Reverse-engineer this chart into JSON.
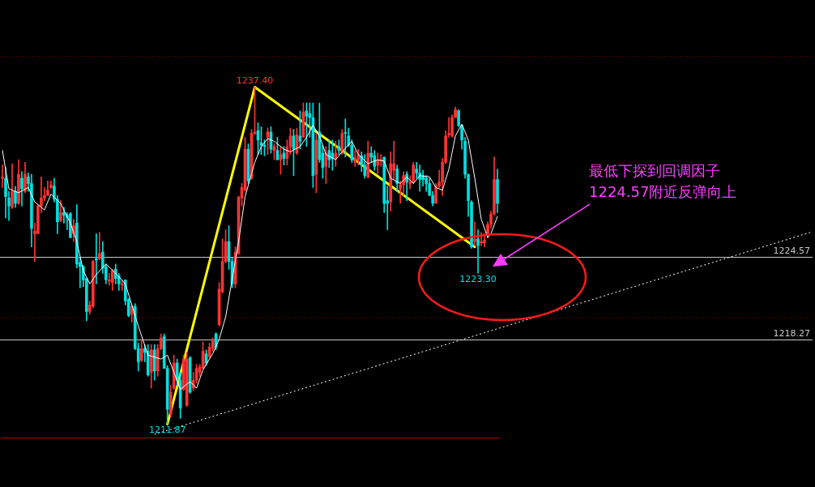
{
  "chart_data": {
    "type": "candlestick",
    "categories": [
      null,
      null,
      null,
      null,
      null,
      null,
      null,
      null,
      null,
      null,
      null,
      null,
      null,
      null,
      null,
      null,
      null,
      null,
      null,
      null,
      null,
      null,
      null,
      null,
      null,
      null,
      null,
      null,
      null,
      null,
      null,
      null,
      null,
      null,
      null,
      null,
      null,
      null,
      null,
      null,
      null,
      null,
      null,
      null,
      null,
      null,
      null,
      null,
      null,
      null,
      null,
      null,
      null,
      null,
      null,
      null,
      null,
      null,
      null,
      null,
      null,
      null,
      null,
      null,
      null,
      null,
      null,
      null,
      null,
      null,
      null,
      null,
      null,
      null,
      null,
      null,
      null,
      null,
      null,
      null,
      null,
      null,
      null,
      null,
      null,
      null,
      null,
      null,
      null,
      null,
      null,
      null,
      null,
      null,
      null,
      null,
      null,
      null,
      null,
      null,
      null,
      null,
      null,
      null,
      null,
      null,
      null,
      null,
      null,
      null,
      null,
      null,
      null,
      null,
      null,
      null,
      null,
      null,
      null,
      null,
      null,
      null,
      null,
      null,
      null,
      null,
      null,
      null,
      null,
      null,
      null,
      null,
      null,
      null,
      null,
      null,
      null,
      null,
      null,
      null,
      null,
      null,
      null,
      null,
      null,
      null,
      null,
      null,
      null,
      null,
      null,
      null,
      null,
      null
    ],
    "ohlc": [
      [
        1230.5,
        1231.5,
        1229.8,
        1230.6
      ],
      [
        1230.5,
        1231.3,
        1227.5,
        1229.1
      ],
      [
        1229.0,
        1229.5,
        1227.3,
        1228.4
      ],
      [
        1228.3,
        1231.6,
        1228.2,
        1229.5
      ],
      [
        1229.5,
        1229.9,
        1228.3,
        1228.6
      ],
      [
        1228.6,
        1231.9,
        1228.5,
        1230.8
      ],
      [
        1230.5,
        1231.0,
        1228.4,
        1229.7
      ],
      [
        1229.5,
        1231.7,
        1229.4,
        1230.8
      ],
      [
        1230.6,
        1230.9,
        1229.5,
        1230.1
      ],
      [
        1230.1,
        1230.8,
        1225.3,
        1226.7
      ],
      [
        1226.3,
        1227.1,
        1224.2,
        1226.5
      ],
      [
        1226.3,
        1228.5,
        1226.3,
        1228.4
      ],
      [
        1228.4,
        1230.6,
        1227.9,
        1229.0
      ],
      [
        1229.0,
        1229.8,
        1228.8,
        1229.2
      ],
      [
        1229.2,
        1230.3,
        1229.2,
        1229.6
      ],
      [
        1229.8,
        1230.3,
        1229.7,
        1230.0
      ],
      [
        1229.9,
        1230.5,
        1228.7,
        1228.9
      ],
      [
        1228.9,
        1229.2,
        1226.3,
        1227.2
      ],
      [
        1227.3,
        1228.8,
        1227.2,
        1227.9
      ],
      [
        1227.9,
        1228.3,
        1227.1,
        1227.7
      ],
      [
        1227.7,
        1227.9,
        1226.6,
        1227.5
      ],
      [
        1227.8,
        1227.9,
        1226.0,
        1226.0
      ],
      [
        1226.3,
        1227.4,
        1225.7,
        1226.9
      ],
      [
        1227.1,
        1228.5,
        1223.7,
        1224.0
      ],
      [
        1224.1,
        1224.5,
        1222.2,
        1223.8
      ],
      [
        1223.8,
        1223.9,
        1222.3,
        1222.8
      ],
      [
        1222.9,
        1222.9,
        1219.7,
        1220.4
      ],
      [
        1220.4,
        1221.2,
        1220.2,
        1220.9
      ],
      [
        1220.8,
        1224.3,
        1220.7,
        1224.2
      ],
      [
        1224.4,
        1226.3,
        1222.5,
        1224.3
      ],
      [
        1224.4,
        1226.4,
        1224.3,
        1224.8
      ],
      [
        1224.9,
        1225.7,
        1223.3,
        1223.7
      ],
      [
        1223.8,
        1224.0,
        1222.5,
        1222.8
      ],
      [
        1222.7,
        1223.3,
        1222.4,
        1222.8
      ],
      [
        1222.6,
        1223.6,
        1222.0,
        1223.5
      ],
      [
        1223.6,
        1224.0,
        1222.5,
        1222.9
      ],
      [
        1223.1,
        1223.3,
        1222.0,
        1222.5
      ],
      [
        1222.4,
        1222.8,
        1222.0,
        1222.5
      ],
      [
        1222.8,
        1222.8,
        1220.9,
        1221.2
      ],
      [
        1221.3,
        1221.4,
        1220.0,
        1220.1
      ],
      [
        1220.2,
        1220.9,
        1219.6,
        1220.8
      ],
      [
        1220.8,
        1221.0,
        1217.5,
        1217.6
      ],
      [
        1217.6,
        1218.0,
        1215.9,
        1216.6
      ],
      [
        1216.7,
        1218.3,
        1216.6,
        1217.6
      ],
      [
        1217.6,
        1217.9,
        1216.6,
        1217.3
      ],
      [
        1217.4,
        1217.9,
        1215.5,
        1215.6
      ],
      [
        1215.8,
        1217.9,
        1214.6,
        1217.5
      ],
      [
        1217.5,
        1217.9,
        1215.2,
        1215.9
      ],
      [
        1215.9,
        1217.9,
        1215.5,
        1217.6
      ],
      [
        1217.6,
        1218.7,
        1217.5,
        1218.4
      ],
      [
        1218.5,
        1218.7,
        1216.1,
        1216.1
      ],
      [
        1216.1,
        1216.3,
        1211.87,
        1213.0
      ],
      [
        1212.6,
        1214.8,
        1212.4,
        1214.3
      ],
      [
        1214.6,
        1217.1,
        1214.5,
        1216.5
      ],
      [
        1216.5,
        1216.8,
        1214.8,
        1215.2
      ],
      [
        1215.2,
        1215.8,
        1212.3,
        1213.1
      ],
      [
        1214.5,
        1217.1,
        1214.4,
        1216.8
      ],
      [
        1213.3,
        1217.3,
        1213.2,
        1216.8
      ],
      [
        1216.9,
        1217.0,
        1214.2,
        1214.3
      ],
      [
        1214.6,
        1215.8,
        1214.4,
        1215.2
      ],
      [
        1215.2,
        1216.4,
        1215.0,
        1216.1
      ],
      [
        1215.8,
        1216.4,
        1215.5,
        1216.2
      ],
      [
        1216.1,
        1218.1,
        1216.1,
        1217.4
      ],
      [
        1217.2,
        1217.5,
        1216.3,
        1216.5
      ],
      [
        1217.0,
        1218.0,
        1216.9,
        1217.7
      ],
      [
        1217.6,
        1218.4,
        1217.4,
        1218.3
      ],
      [
        1218.7,
        1218.8,
        1217.5,
        1217.7
      ],
      [
        1219.4,
        1222.6,
        1219.3,
        1222.1
      ],
      [
        1221.9,
        1225.9,
        1221.8,
        1224.2
      ],
      [
        1224.2,
        1226.6,
        1224.1,
        1225.7
      ],
      [
        1225.7,
        1226.9,
        1223.6,
        1224.2
      ],
      [
        1224.2,
        1224.5,
        1222.2,
        1222.5
      ],
      [
        1222.5,
        1225.3,
        1222.2,
        1224.9
      ],
      [
        1224.8,
        1229.1,
        1224.7,
        1229.1
      ],
      [
        1229.0,
        1230.1,
        1228.4,
        1229.8
      ],
      [
        1229.6,
        1233.6,
        1229.5,
        1232.7
      ],
      [
        1232.7,
        1233.1,
        1230.1,
        1230.3
      ],
      [
        1230.5,
        1234.2,
        1230.4,
        1233.9
      ],
      [
        1233.9,
        1237.4,
        1233.8,
        1234.0
      ],
      [
        1234.1,
        1234.7,
        1232.3,
        1233.4
      ],
      [
        1233.2,
        1234.4,
        1232.3,
        1233.0
      ],
      [
        1233.0,
        1233.4,
        1232.2,
        1232.9
      ],
      [
        1233.6,
        1234.3,
        1232.3,
        1234.0
      ],
      [
        1234.0,
        1234.4,
        1232.4,
        1232.7
      ],
      [
        1232.6,
        1233.1,
        1231.9,
        1232.9
      ],
      [
        1232.6,
        1233.6,
        1231.9,
        1231.9
      ],
      [
        1231.9,
        1232.9,
        1230.8,
        1232.3
      ],
      [
        1232.4,
        1232.9,
        1231.5,
        1232.0
      ],
      [
        1232.0,
        1233.4,
        1231.5,
        1232.9
      ],
      [
        1232.9,
        1234.3,
        1232.3,
        1233.7
      ],
      [
        1233.7,
        1234.2,
        1230.7,
        1232.7
      ],
      [
        1232.4,
        1234.3,
        1232.3,
        1233.8
      ],
      [
        1233.7,
        1235.6,
        1232.7,
        1233.3
      ],
      [
        1233.6,
        1236.2,
        1233.6,
        1235.5
      ],
      [
        1235.6,
        1236.2,
        1232.9,
        1235.2
      ],
      [
        1235.4,
        1236.2,
        1233.6,
        1235.1
      ],
      [
        1235.1,
        1236.2,
        1229.8,
        1230.7
      ],
      [
        1230.8,
        1233.9,
        1229.4,
        1233.4
      ],
      [
        1234.0,
        1236.2,
        1231.7,
        1231.9
      ],
      [
        1232.4,
        1233.0,
        1230.5,
        1231.3
      ],
      [
        1231.4,
        1232.9,
        1230.1,
        1232.4
      ],
      [
        1232.6,
        1233.4,
        1231.3,
        1231.9
      ],
      [
        1232.4,
        1233.4,
        1231.1,
        1232.0
      ],
      [
        1232.0,
        1233.3,
        1231.4,
        1232.4
      ],
      [
        1232.9,
        1233.4,
        1232.3,
        1232.6
      ],
      [
        1232.4,
        1234.2,
        1232.3,
        1233.9
      ],
      [
        1233.9,
        1235.0,
        1232.1,
        1233.9
      ],
      [
        1233.7,
        1234.3,
        1232.9,
        1233.0
      ],
      [
        1233.0,
        1233.4,
        1231.7,
        1231.9
      ],
      [
        1231.7,
        1232.6,
        1231.4,
        1232.0
      ],
      [
        1231.9,
        1232.7,
        1231.5,
        1232.3
      ],
      [
        1232.2,
        1232.5,
        1231.0,
        1231.5
      ],
      [
        1231.5,
        1232.3,
        1230.5,
        1230.7
      ],
      [
        1230.6,
        1233.3,
        1230.5,
        1232.4
      ],
      [
        1232.4,
        1232.9,
        1231.7,
        1232.1
      ],
      [
        1232.2,
        1232.6,
        1231.1,
        1231.4
      ],
      [
        1231.5,
        1232.4,
        1230.8,
        1231.9
      ],
      [
        1231.8,
        1232.3,
        1231.4,
        1231.9
      ],
      [
        1232.1,
        1232.1,
        1227.9,
        1228.6
      ],
      [
        1228.8,
        1229.9,
        1226.6,
        1228.6
      ],
      [
        1228.7,
        1232.5,
        1228.0,
        1231.6
      ],
      [
        1231.1,
        1233.3,
        1230.4,
        1231.6
      ],
      [
        1231.2,
        1231.5,
        1229.5,
        1230.1
      ],
      [
        1229.7,
        1230.3,
        1228.6,
        1230.0
      ],
      [
        1230.0,
        1231.0,
        1229.2,
        1230.7
      ],
      [
        1230.8,
        1231.0,
        1228.8,
        1230.2
      ],
      [
        1230.1,
        1230.7,
        1229.7,
        1230.2
      ],
      [
        1230.2,
        1231.7,
        1230.1,
        1231.5
      ],
      [
        1231.2,
        1231.7,
        1230.5,
        1230.9
      ],
      [
        1230.9,
        1231.5,
        1229.5,
        1230.4
      ],
      [
        1230.7,
        1231.1,
        1229.9,
        1230.4
      ],
      [
        1230.5,
        1230.7,
        1229.5,
        1230.1
      ],
      [
        1230.1,
        1230.5,
        1229.2,
        1229.2
      ],
      [
        1229.2,
        1229.5,
        1228.4,
        1228.6
      ],
      [
        1228.6,
        1230.1,
        1228.6,
        1229.9
      ],
      [
        1229.9,
        1231.1,
        1229.8,
        1230.2
      ],
      [
        1230.2,
        1232.0,
        1229.2,
        1231.7
      ],
      [
        1231.7,
        1234.1,
        1231.6,
        1233.7
      ],
      [
        1233.8,
        1235.1,
        1233.6,
        1233.9
      ],
      [
        1233.7,
        1235.3,
        1233.6,
        1235.1
      ],
      [
        1235.1,
        1235.9,
        1235.1,
        1235.7
      ],
      [
        1235.6,
        1235.7,
        1234.4,
        1234.5
      ],
      [
        1234.5,
        1234.5,
        1232.7,
        1233.4
      ],
      [
        1233.3,
        1233.6,
        1230.5,
        1230.8
      ],
      [
        1230.8,
        1230.8,
        1227.6,
        1228.8
      ],
      [
        1228.7,
        1228.8,
        1225.2,
        1225.3
      ],
      [
        1225.7,
        1227.2,
        1225.4,
        1225.9
      ],
      [
        1225.9,
        1226.6,
        1223.3,
        1225.4
      ],
      [
        1225.6,
        1226.4,
        1225.4,
        1225.7
      ],
      [
        1225.6,
        1226.3,
        1225.3,
        1225.8
      ],
      [
        1226.3,
        1227.2,
        1226.0,
        1227.0
      ],
      [
        1227.0,
        1228.0,
        1226.7,
        1227.8
      ],
      [
        1227.8,
        1232.1,
        1227.7,
        1230.4
      ],
      [
        1230.4,
        1231.2,
        1227.9,
        1228.6
      ]
    ],
    "colors": [
      "#ff3232",
      "#00e0e0",
      "#00e0e0",
      "#ff3232",
      "#00e0e0",
      "#ff3232",
      "#00e0e0",
      "#ff3232",
      "#00e0e0",
      "#00e0e0",
      "#ff3232",
      "#ff3232",
      "#ff3232",
      "#ff3232",
      "#ff3232",
      "#ff3232",
      "#00e0e0",
      "#00e0e0",
      "#ff3232",
      "#00e0e0",
      "#00e0e0",
      "#00e0e0",
      "#ff3232",
      "#00e0e0",
      "#00e0e0",
      "#00e0e0",
      "#00e0e0",
      "#ff3232",
      "#ff3232",
      "#00e0e0",
      "#ff3232",
      "#00e0e0",
      "#00e0e0",
      "#ff3232",
      "#ff3232",
      "#00e0e0",
      "#00e0e0",
      "#ff3232",
      "#00e0e0",
      "#00e0e0",
      "#ff3232",
      "#00e0e0",
      "#00e0e0",
      "#ff3232",
      "#00e0e0",
      "#00e0e0",
      "#ff3232",
      "#00e0e0",
      "#ff3232",
      "#ff3232",
      "#00e0e0",
      "#00e0e0",
      "#ff3232",
      "#ff3232",
      "#00e0e0",
      "#00e0e0",
      "#ff3232",
      "#ff3232",
      "#00e0e0",
      "#ff3232",
      "#ff3232",
      "#ff3232",
      "#ff3232",
      "#00e0e0",
      "#ff3232",
      "#ff3232",
      "#00e0e0",
      "#ff3232",
      "#ff3232",
      "#ff3232",
      "#00e0e0",
      "#00e0e0",
      "#ff3232",
      "#ff3232",
      "#ff3232",
      "#ff3232",
      "#00e0e0",
      "#ff3232",
      "#ff3232",
      "#00e0e0",
      "#00e0e0",
      "#00e0e0",
      "#ff3232",
      "#00e0e0",
      "#ff3232",
      "#00e0e0",
      "#ff3232",
      "#00e0e0",
      "#ff3232",
      "#ff3232",
      "#00e0e0",
      "#ff3232",
      "#00e0e0",
      "#ff3232",
      "#00e0e0",
      "#00e0e0",
      "#00e0e0",
      "#ff3232",
      "#00e0e0",
      "#00e0e0",
      "#ff3232",
      "#00e0e0",
      "#00e0e0",
      "#ff3232",
      "#00e0e0",
      "#ff3232",
      "#00e0e0",
      "#00e0e0",
      "#00e0e0",
      "#ff3232",
      "#ff3232",
      "#00e0e0",
      "#00e0e0",
      "#ff3232",
      "#00e0e0",
      "#00e0e0",
      "#ff3232",
      "#ff3232",
      "#00e0e0",
      "#00e0e0",
      "#ff3232",
      "#ff3232",
      "#00e0e0",
      "#ff3232",
      "#ff3232",
      "#00e0e0",
      "#ff3232",
      "#ff3232",
      "#00e0e0",
      "#00e0e0",
      "#00e0e0",
      "#00e0e0",
      "#00e0e0",
      "#00e0e0",
      "#ff3232",
      "#ff3232",
      "#ff3232",
      "#ff3232",
      "#ff3232",
      "#ff3232",
      "#ff3232",
      "#00e0e0",
      "#00e0e0",
      "#00e0e0",
      "#00e0e0",
      "#00e0e0",
      "#ff3232",
      "#00e0e0",
      "#ff3232",
      "#ff3232",
      "#ff3232",
      "#ff3232",
      "#ff3232",
      "#00e0e0"
    ],
    "value_labels": [
      null,
      null,
      null,
      null,
      null,
      null,
      null,
      null,
      null,
      null,
      null,
      null,
      null,
      null,
      null,
      null,
      null,
      null,
      null,
      null,
      null,
      null,
      null,
      null,
      null,
      null,
      null,
      null,
      null,
      null,
      null,
      null,
      null,
      null,
      null,
      null,
      null,
      null,
      null,
      null,
      null,
      null,
      null,
      null,
      null,
      null,
      null,
      null,
      null,
      null,
      null,
      "1211.87",
      null,
      null,
      null,
      null,
      null,
      null,
      null,
      null,
      null,
      null,
      null,
      null,
      null,
      null,
      null,
      null,
      null,
      null,
      null,
      null,
      null,
      null,
      null,
      null,
      null,
      null,
      "1237.40",
      null,
      null,
      null,
      null,
      null,
      null,
      null,
      null,
      null,
      null,
      null,
      null,
      null,
      null,
      null,
      null,
      null,
      null,
      null,
      null,
      null,
      null,
      null,
      null,
      null,
      null,
      null,
      null,
      null,
      null,
      null,
      null,
      null,
      null,
      null,
      null,
      null,
      null,
      null,
      null,
      null,
      null,
      null,
      null,
      null,
      null,
      null,
      null,
      null,
      null,
      null,
      null,
      null,
      null,
      null,
      null,
      null,
      null,
      null,
      null,
      null,
      null,
      null,
      null,
      null,
      null,
      null,
      null,
      "1223.30",
      null,
      null,
      null,
      null,
      null,
      null
    ],
    "series": [
      {
        "type": "line",
        "color": "#ffffff",
        "values": [
          1232.6,
          null,
          1229.7,
          null,
          null,
          1229.4,
          null,
          null,
          1229.8,
          null,
          1228.7,
          null,
          null,
          1228.1,
          null,
          1229.3,
          null,
          null,
          1228.6,
          null,
          null,
          1227.1,
          null,
          1225.7,
          null,
          1223.5,
          null,
          1222.5,
          null,
          1223.2,
          null,
          null,
          1224.0,
          null,
          null,
          1223.3,
          null,
          null,
          1222.5,
          null,
          null,
          null,
          1219.3,
          null,
          null,
          1217.1,
          null,
          null,
          null,
          1216.8,
          null,
          1217.1,
          null,
          1215.8,
          null,
          1214.5,
          null,
          null,
          1215.1,
          null,
          1214.6,
          null,
          1216.0,
          null,
          null,
          1217.2,
          null,
          1218.3,
          null,
          1220.0,
          null,
          null,
          null,
          1225.7,
          null,
          1229.1,
          null,
          null,
          1231.7,
          null,
          1232.9,
          null,
          1233.5,
          null,
          1233.3,
          null,
          null,
          1232.7,
          null,
          1232.5,
          null,
          null,
          1232.9,
          null,
          1233.6,
          null,
          1234.5,
          null,
          1233.7,
          null,
          1232.3,
          null,
          null,
          1231.9,
          null,
          1232.5,
          null,
          null,
          1233.3,
          null,
          1232.3,
          null,
          null,
          1231.6,
          null,
          null,
          1231.9,
          null,
          1231.8,
          null,
          1230.5,
          null,
          null,
          1230.1,
          null,
          1230.6,
          null,
          1230.1,
          null,
          1230.7,
          null,
          null,
          1230.6,
          null,
          1229.8,
          null,
          1229.6,
          null,
          1231.2,
          null,
          1233.7,
          null,
          1234.6,
          null,
          1233.4,
          null,
          1230.5,
          null,
          1227.4,
          null,
          1226.0,
          1226.3,
          null,
          1227.6
        ]
      },
      {
        "type": "line",
        "color": "#ffff00",
        "values": [
          null,
          null,
          null,
          null,
          null,
          null,
          null,
          null,
          null,
          null,
          null,
          null,
          null,
          null,
          null,
          null,
          null,
          null,
          null,
          null,
          null,
          null,
          null,
          null,
          null,
          null,
          null,
          null,
          null,
          null,
          null,
          null,
          null,
          null,
          null,
          null,
          null,
          null,
          null,
          null,
          null,
          null,
          null,
          null,
          null,
          null,
          null,
          null,
          null,
          null,
          null,
          1211.87,
          null,
          null,
          null,
          null,
          null,
          null,
          null,
          null,
          null,
          null,
          null,
          null,
          null,
          null,
          null,
          null,
          null,
          null,
          null,
          null,
          null,
          null,
          null,
          null,
          null,
          null,
          1237.4,
          null,
          null,
          null,
          null,
          null,
          null,
          null,
          null,
          null,
          null,
          null,
          null,
          null,
          null,
          null,
          null,
          null,
          null,
          null,
          null,
          null,
          null,
          null,
          null,
          null,
          null,
          null,
          null,
          null,
          null,
          null,
          null,
          null,
          null,
          null,
          null,
          null,
          null,
          null,
          null,
          null,
          null,
          null,
          null,
          null,
          null,
          null,
          null,
          null,
          null,
          null,
          null,
          null,
          null,
          null,
          null,
          null,
          null,
          null,
          null,
          null,
          null,
          null,
          null,
          null,
          null,
          null,
          1225.3,
          null,
          null,
          null,
          null,
          null,
          null,
          null
        ]
      },
      {
        "type": "line",
        "color": "#ffffff",
        "line_style": "dotted",
        "values": [
          null,
          null,
          null,
          null,
          null,
          null,
          null,
          null,
          null,
          null,
          null,
          null,
          null,
          null,
          null,
          null,
          null,
          null,
          null,
          null,
          null,
          null,
          null,
          null,
          null,
          null,
          null,
          null,
          null,
          null,
          null,
          null,
          null,
          null,
          null,
          null,
          null,
          null,
          null,
          null,
          null,
          null,
          null,
          null,
          null,
          null,
          null,
          1211.1,
          null,
          null,
          null,
          null,
          null,
          null,
          null,
          null,
          null,
          null,
          null,
          null,
          null,
          null,
          null,
          null,
          null,
          null,
          null,
          null,
          null,
          null,
          null,
          null,
          null,
          null,
          null,
          null,
          null,
          null,
          null,
          null,
          null,
          null,
          null,
          null,
          null,
          null,
          null,
          null,
          null,
          null,
          null,
          null,
          null,
          null,
          null,
          null,
          null,
          null,
          null,
          null,
          null,
          null,
          null,
          null,
          null,
          null,
          null,
          null,
          null,
          null,
          null,
          null,
          null,
          null,
          null,
          null,
          null,
          null,
          null,
          null,
          null,
          null,
          null,
          null,
          null,
          null,
          null,
          null,
          null,
          null,
          null,
          null,
          null,
          null,
          null,
          null,
          null,
          null,
          null,
          null,
          null,
          null,
          null,
          null,
          null,
          null,
          null,
          null,
          null,
          null,
          null,
          null,
          null,
          1219.1
        ]
      }
    ],
    "ref_lines": [
      {
        "axis": "y",
        "value": 1224.57,
        "label": "1224.57",
        "color": "#c8c8c8"
      },
      {
        "axis": "y",
        "value": 1218.27,
        "label": "1218.27",
        "color": "#c8c8c8"
      }
    ],
    "yticks": [
      {
        "value": 1239.74,
        "label": null
      },
      {
        "value": 1219.96,
        "label": null
      }
    ],
    "grid": "y",
    "annotations": [
      "最低下探到回调因子\n1224.57附近反弹向上"
    ]
  }
}
